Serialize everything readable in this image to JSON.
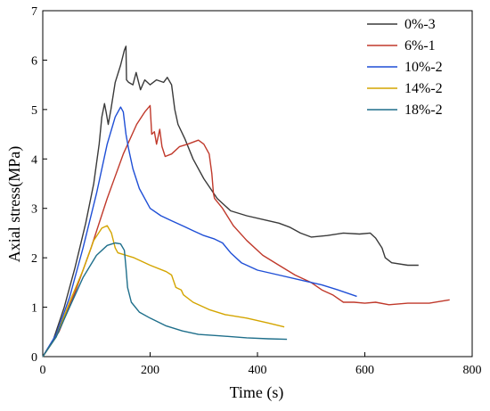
{
  "chart_data": {
    "type": "line",
    "xlabel": "Time (s)",
    "ylabel": "Axial stress(MPa)",
    "xlim": [
      0,
      800
    ],
    "ylim": [
      0,
      7
    ],
    "xticks": [
      0,
      200,
      400,
      600,
      800
    ],
    "yticks": [
      0,
      1,
      2,
      3,
      4,
      5,
      6,
      7
    ],
    "grid": false,
    "legend_position": "top-right",
    "series": [
      {
        "name": "0%-3",
        "color": "#3a3a3a",
        "points": [
          [
            0,
            0
          ],
          [
            20,
            0.35
          ],
          [
            40,
            1.0
          ],
          [
            60,
            1.8
          ],
          [
            80,
            2.7
          ],
          [
            95,
            3.5
          ],
          [
            105,
            4.3
          ],
          [
            110,
            4.85
          ],
          [
            115,
            5.12
          ],
          [
            118,
            4.95
          ],
          [
            122,
            4.7
          ],
          [
            127,
            5.0
          ],
          [
            135,
            5.55
          ],
          [
            145,
            5.9
          ],
          [
            152,
            6.2
          ],
          [
            155,
            6.28
          ],
          [
            156,
            5.6
          ],
          [
            160,
            5.55
          ],
          [
            168,
            5.5
          ],
          [
            174,
            5.75
          ],
          [
            182,
            5.4
          ],
          [
            190,
            5.6
          ],
          [
            200,
            5.5
          ],
          [
            212,
            5.6
          ],
          [
            225,
            5.55
          ],
          [
            232,
            5.65
          ],
          [
            240,
            5.5
          ],
          [
            246,
            5.0
          ],
          [
            252,
            4.7
          ],
          [
            265,
            4.4
          ],
          [
            280,
            4.0
          ],
          [
            300,
            3.6
          ],
          [
            325,
            3.2
          ],
          [
            350,
            2.95
          ],
          [
            380,
            2.85
          ],
          [
            420,
            2.75
          ],
          [
            440,
            2.7
          ],
          [
            460,
            2.62
          ],
          [
            480,
            2.5
          ],
          [
            500,
            2.42
          ],
          [
            530,
            2.45
          ],
          [
            560,
            2.5
          ],
          [
            590,
            2.48
          ],
          [
            610,
            2.5
          ],
          [
            620,
            2.4
          ],
          [
            632,
            2.2
          ],
          [
            638,
            2.0
          ],
          [
            650,
            1.9
          ],
          [
            680,
            1.85
          ],
          [
            700,
            1.85
          ]
        ]
      },
      {
        "name": "6%-1",
        "color": "#c0392b",
        "points": [
          [
            0,
            0
          ],
          [
            30,
            0.5
          ],
          [
            60,
            1.3
          ],
          [
            90,
            2.2
          ],
          [
            120,
            3.2
          ],
          [
            150,
            4.1
          ],
          [
            175,
            4.7
          ],
          [
            190,
            4.95
          ],
          [
            200,
            5.08
          ],
          [
            203,
            4.5
          ],
          [
            208,
            4.55
          ],
          [
            212,
            4.3
          ],
          [
            218,
            4.6
          ],
          [
            222,
            4.25
          ],
          [
            228,
            4.05
          ],
          [
            240,
            4.1
          ],
          [
            255,
            4.25
          ],
          [
            270,
            4.3
          ],
          [
            290,
            4.38
          ],
          [
            300,
            4.3
          ],
          [
            310,
            4.1
          ],
          [
            315,
            3.7
          ],
          [
            318,
            3.3
          ],
          [
            320,
            3.2
          ],
          [
            335,
            3.0
          ],
          [
            355,
            2.65
          ],
          [
            380,
            2.35
          ],
          [
            410,
            2.05
          ],
          [
            440,
            1.85
          ],
          [
            470,
            1.65
          ],
          [
            500,
            1.5
          ],
          [
            520,
            1.35
          ],
          [
            540,
            1.25
          ],
          [
            560,
            1.1
          ],
          [
            580,
            1.1
          ],
          [
            600,
            1.08
          ],
          [
            620,
            1.1
          ],
          [
            645,
            1.05
          ],
          [
            680,
            1.08
          ],
          [
            720,
            1.08
          ],
          [
            758,
            1.15
          ]
        ]
      },
      {
        "name": "10%-2",
        "color": "#1f4fd6",
        "points": [
          [
            0,
            0
          ],
          [
            25,
            0.45
          ],
          [
            50,
            1.2
          ],
          [
            75,
            2.2
          ],
          [
            100,
            3.3
          ],
          [
            120,
            4.3
          ],
          [
            135,
            4.85
          ],
          [
            145,
            5.05
          ],
          [
            150,
            4.95
          ],
          [
            155,
            4.5
          ],
          [
            160,
            4.2
          ],
          [
            168,
            3.8
          ],
          [
            180,
            3.4
          ],
          [
            200,
            3.0
          ],
          [
            220,
            2.85
          ],
          [
            240,
            2.75
          ],
          [
            260,
            2.65
          ],
          [
            280,
            2.55
          ],
          [
            300,
            2.45
          ],
          [
            320,
            2.38
          ],
          [
            335,
            2.3
          ],
          [
            350,
            2.1
          ],
          [
            370,
            1.9
          ],
          [
            400,
            1.75
          ],
          [
            440,
            1.65
          ],
          [
            480,
            1.55
          ],
          [
            520,
            1.45
          ],
          [
            550,
            1.35
          ],
          [
            585,
            1.22
          ]
        ]
      },
      {
        "name": "14%-2",
        "color": "#d4a500",
        "points": [
          [
            0,
            0
          ],
          [
            25,
            0.4
          ],
          [
            50,
            1.1
          ],
          [
            75,
            1.75
          ],
          [
            95,
            2.35
          ],
          [
            110,
            2.6
          ],
          [
            120,
            2.65
          ],
          [
            128,
            2.5
          ],
          [
            135,
            2.2
          ],
          [
            140,
            2.1
          ],
          [
            170,
            2.0
          ],
          [
            200,
            1.85
          ],
          [
            230,
            1.72
          ],
          [
            240,
            1.65
          ],
          [
            248,
            1.4
          ],
          [
            258,
            1.35
          ],
          [
            262,
            1.25
          ],
          [
            280,
            1.1
          ],
          [
            310,
            0.95
          ],
          [
            340,
            0.85
          ],
          [
            380,
            0.78
          ],
          [
            420,
            0.68
          ],
          [
            450,
            0.6
          ]
        ]
      },
      {
        "name": "18%-2",
        "color": "#1f6f8b",
        "points": [
          [
            0,
            0
          ],
          [
            25,
            0.4
          ],
          [
            50,
            1.0
          ],
          [
            75,
            1.6
          ],
          [
            100,
            2.05
          ],
          [
            120,
            2.25
          ],
          [
            135,
            2.3
          ],
          [
            145,
            2.28
          ],
          [
            152,
            2.15
          ],
          [
            155,
            1.8
          ],
          [
            158,
            1.4
          ],
          [
            165,
            1.1
          ],
          [
            180,
            0.9
          ],
          [
            200,
            0.78
          ],
          [
            230,
            0.62
          ],
          [
            260,
            0.52
          ],
          [
            290,
            0.45
          ],
          [
            330,
            0.42
          ],
          [
            380,
            0.38
          ],
          [
            420,
            0.36
          ],
          [
            455,
            0.35
          ]
        ]
      }
    ]
  }
}
